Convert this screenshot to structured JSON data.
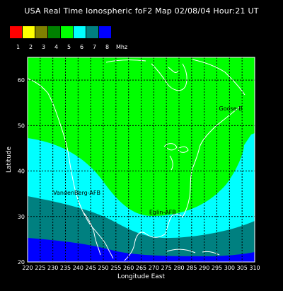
{
  "title": "USA Real Time Ionospheric foF2 Map  02/08/04 Hour:21 UT",
  "scale": {
    "colors": [
      "#ff0000",
      "#ffff00",
      "#808000",
      "#008000",
      "#00ff00",
      "#00ffff",
      "#008080",
      "#0000ff"
    ],
    "labels": [
      "1",
      "2",
      "3",
      "4",
      "5",
      "6",
      "7",
      "8"
    ],
    "unit": "Mhz"
  },
  "map": {
    "xlabel": "Longitude East",
    "ylabel": "Latitude",
    "lon_range": [
      220,
      310
    ],
    "lat_range": [
      20,
      65
    ],
    "lon_ticks": [
      "220",
      "225",
      "230",
      "235",
      "240",
      "245",
      "250",
      "255",
      "260",
      "265",
      "270",
      "275",
      "280",
      "285",
      "290",
      "295",
      "300",
      "305",
      "310"
    ],
    "lat_ticks": [
      "20",
      "30",
      "40",
      "50",
      "60"
    ],
    "region_colors": {
      "band5": "#00ff00",
      "band6": "#00ffff",
      "band7": "#008080",
      "band8": "#0000ff"
    },
    "sites": [
      {
        "name": "Goose-B",
        "lon": 300.5,
        "lat": 53.3
      },
      {
        "name": "VandenBerg-AFB",
        "lon": 239.5,
        "lat": 34.8
      },
      {
        "name": "Eglin-AFB",
        "lon": 273.5,
        "lat": 30.5
      }
    ]
  }
}
